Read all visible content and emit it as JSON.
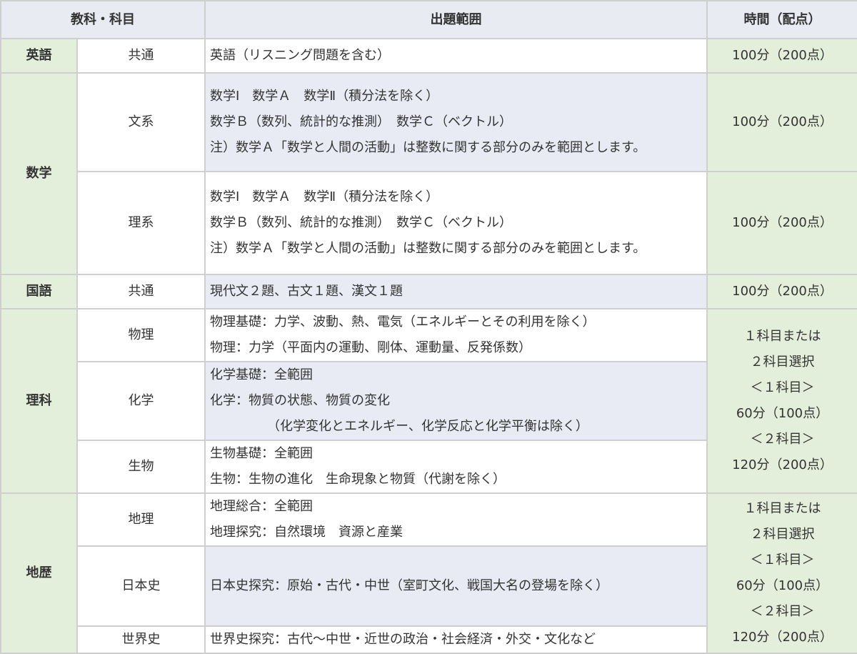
{
  "header": {
    "subject": "教科・科目",
    "range": "出題範囲",
    "time": "時間（配点）"
  },
  "rows": {
    "english": {
      "subject": "英語",
      "sub": "共通",
      "range": [
        "英語（リスニング問題を含む）"
      ],
      "time": "100分（200点）"
    },
    "math_bunkei": {
      "subject": "数学",
      "sub": "文系",
      "range": [
        "数学Ⅰ　数学Ａ　数学Ⅱ（積分法を除く）",
        "数学Ｂ（数列、統計的な推測）　数学Ｃ（ベクトル）",
        "注）数学Ａ「数学と人間の活動」は整数に関する部分のみを範囲とします。"
      ],
      "time": "100分（200点）"
    },
    "math_rikei": {
      "sub": "理系",
      "range": [
        "数学Ⅰ　数学Ａ　数学Ⅱ（積分法を除く）",
        "数学Ｂ（数列、統計的な推測）　数学Ｃ（ベクトル）",
        "注）数学Ａ「数学と人間の活動」は整数に関する部分のみを範囲とします。"
      ],
      "time": "100分（200点）"
    },
    "japanese": {
      "subject": "国語",
      "sub": "共通",
      "range": [
        "現代文２題、古文１題、漢文１題"
      ],
      "time": "100分（200点）"
    },
    "physics": {
      "subject": "理科",
      "sub": "物理",
      "range": [
        "物理基礎：力学、波動、熱、電気（エネルギーとその利用を除く）",
        "物理：力学（平面内の運動、剛体、運動量、反発係数）"
      ],
      "time": [
        "１科目または",
        "２科目選択",
        "＜１科目＞",
        "60分（100点）",
        "＜２科目＞",
        "120分（200点）"
      ]
    },
    "chemistry": {
      "sub": "化学",
      "range": [
        "化学基礎：全範囲",
        "化学：物質の状態、物質の変化",
        "（化学変化とエネルギー、化学反応と化学平衡は除く）"
      ]
    },
    "biology": {
      "sub": "生物",
      "range": [
        "生物基礎：全範囲",
        "生物：生物の進化　生命現象と物質（代謝を除く）"
      ]
    },
    "geography": {
      "subject": "地歴",
      "sub": "地理",
      "range": [
        "地理総合：全範囲",
        "地理探究：自然環境　資源と産業"
      ],
      "time": [
        "１科目または",
        "２科目選択",
        "＜１科目＞",
        "60分（100点）",
        "＜２科目＞",
        "120分（200点）"
      ]
    },
    "japanese_history": {
      "sub": "日本史",
      "range": [
        "日本史探究：原始・古代・中世（室町文化、戦国大名の登場を除く）"
      ]
    },
    "world_history": {
      "sub": "世界史",
      "range": [
        "世界史探究：古代～中世・近世の政治・社会経済・外交・文化など"
      ]
    }
  },
  "colors": {
    "header_bg": "#e8ebf2",
    "subject_bg": "#e3eedb",
    "stripe_bg": "#e8ebf3",
    "border": "#cfcfcf"
  }
}
